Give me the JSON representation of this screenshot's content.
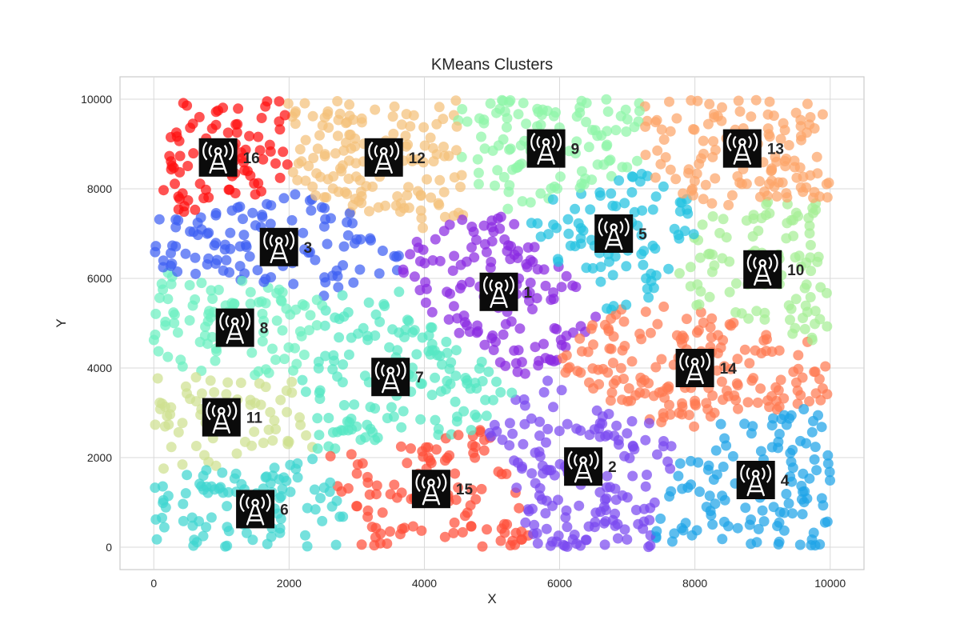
{
  "chart_data": {
    "type": "scatter",
    "title": "KMeans Clusters",
    "xlabel": "X",
    "ylabel": "Y",
    "xlim": [
      -500,
      10500
    ],
    "ylim": [
      -500,
      10500
    ],
    "xticks": [
      0,
      2000,
      4000,
      6000,
      8000,
      10000
    ],
    "yticks": [
      0,
      2000,
      4000,
      6000,
      8000,
      10000
    ],
    "grid": true,
    "centroid_icon": "radio-tower-icon",
    "clusters": [
      {
        "label": "1",
        "centroid": [
          5100,
          5700
        ],
        "color": "#8b2be2",
        "spread": [
          900,
          1000
        ]
      },
      {
        "label": "2",
        "centroid": [
          6350,
          1800
        ],
        "color": "#7a4af0",
        "spread": [
          1000,
          1000
        ]
      },
      {
        "label": "3",
        "centroid": [
          1850,
          6700
        ],
        "color": "#3e60f2",
        "spread": [
          1100,
          800
        ]
      },
      {
        "label": "4",
        "centroid": [
          8900,
          1500
        ],
        "color": "#1ea4e8",
        "spread": [
          1000,
          1100
        ]
      },
      {
        "label": "5",
        "centroid": [
          6800,
          7000
        ],
        "color": "#22c2e0",
        "spread": [
          900,
          1000
        ]
      },
      {
        "label": "6",
        "centroid": [
          1500,
          850
        ],
        "color": "#40d6d0",
        "spread": [
          1100,
          800
        ]
      },
      {
        "label": "7",
        "centroid": [
          3500,
          3800
        ],
        "color": "#56e8c4",
        "spread": [
          1000,
          1300
        ]
      },
      {
        "label": "8",
        "centroid": [
          1200,
          4900
        ],
        "color": "#6cf0c0",
        "spread": [
          900,
          1000
        ]
      },
      {
        "label": "9",
        "centroid": [
          5800,
          8900
        ],
        "color": "#8ff5a8",
        "spread": [
          1100,
          900
        ]
      },
      {
        "label": "10",
        "centroid": [
          9000,
          6200
        ],
        "color": "#a6ee96",
        "spread": [
          900,
          1100
        ]
      },
      {
        "label": "11",
        "centroid": [
          1000,
          2900
        ],
        "color": "#cfe090",
        "spread": [
          900,
          900
        ]
      },
      {
        "label": "12",
        "centroid": [
          3400,
          8700
        ],
        "color": "#f4c07a",
        "spread": [
          1000,
          1000
        ]
      },
      {
        "label": "13",
        "centroid": [
          8700,
          8900
        ],
        "color": "#fca56a",
        "spread": [
          1100,
          900
        ]
      },
      {
        "label": "14",
        "centroid": [
          8000,
          4000
        ],
        "color": "#ff7a52",
        "spread": [
          1100,
          1000
        ]
      },
      {
        "label": "15",
        "centroid": [
          4100,
          1300
        ],
        "color": "#ff4f3a",
        "spread": [
          1100,
          900
        ]
      },
      {
        "label": "16",
        "centroid": [
          950,
          8700
        ],
        "color": "#ff1010",
        "spread": [
          800,
          900
        ]
      }
    ]
  }
}
